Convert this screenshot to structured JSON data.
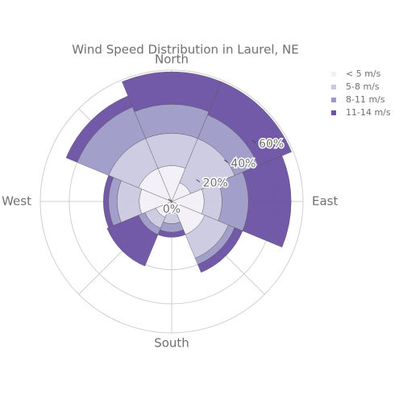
{
  "chart_data": {
    "type": "barpolar",
    "title": "Wind Speed Distribution in Laurel, NE",
    "categories": [
      "North",
      null,
      "East",
      null,
      "South",
      null,
      "West",
      null
    ],
    "series": [
      {
        "name": "< 5 m/s",
        "color": "#f2f0f7",
        "values": [
          21,
          12,
          19,
          21,
          7,
          10,
          19,
          21
        ]
      },
      {
        "name": "5-8 m/s",
        "color": "#cbc9e2",
        "values": [
          19,
          28,
          10.5,
          15,
          6,
          7,
          13,
          19
        ]
      },
      {
        "name": "8-11 m/s",
        "color": "#9e9ac8",
        "values": [
          17,
          15,
          15.5,
          4,
          5,
          4,
          5,
          20
        ]
      },
      {
        "name": "11-14 m/s",
        "color": "#6a51a3",
        "values": [
          19,
          21,
          25,
          5,
          3,
          20,
          3,
          7
        ]
      }
    ],
    "ylim": [
      0,
      77
    ],
    "yticks": [
      {
        "value": 0,
        "label": "0%"
      },
      {
        "value": 20,
        "label": "20%"
      },
      {
        "value": 40,
        "label": "40%"
      },
      {
        "value": 60,
        "label": "60%"
      }
    ],
    "grid": true,
    "legend": "top-right"
  }
}
